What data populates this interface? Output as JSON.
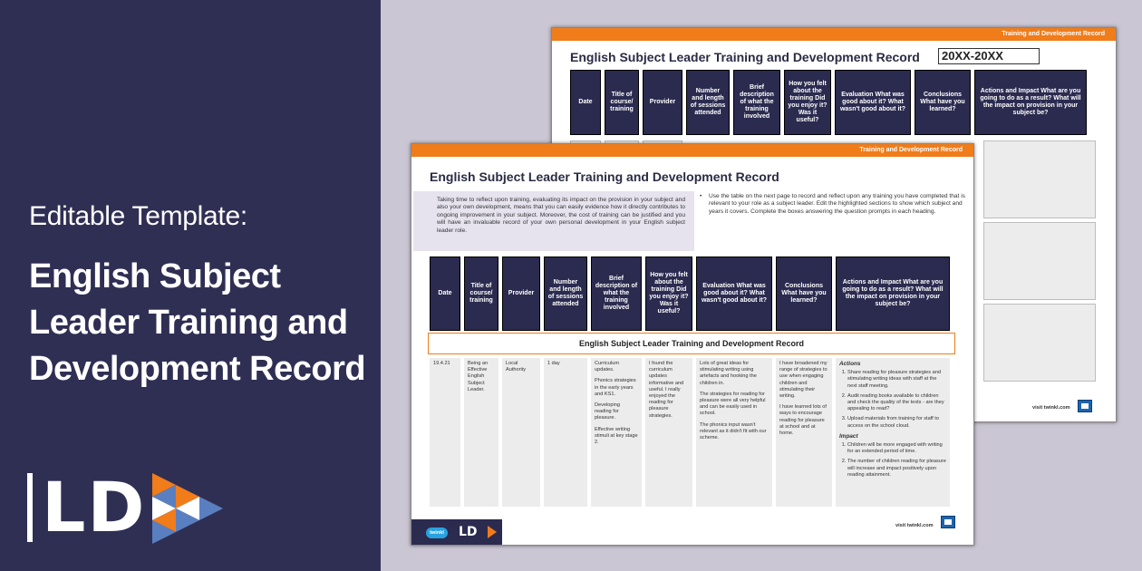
{
  "promo": {
    "edit_label": "Editable Template:",
    "title": "English Subject Leader Training and Development Record",
    "logo_text": "LD",
    "logo_colors": [
      "#f07c1a",
      "#5a7fc1",
      "#ffffff",
      "#2f2f54"
    ]
  },
  "document": {
    "strip_label": "Training and Development Record",
    "title": "English Subject Leader Training and Development Record",
    "year_label": "20XX-20XX",
    "intro_left": "Taking time to reflect upon training, evaluating its impact on the provision in your subject and also your own development, means that you can easily evidence how it directly contributes to ongoing improvement in your subject. Moreover, the cost of training can be justified and you will have an invaluable record of your own personal development in your English subject leader role.",
    "intro_right": "Use the table on the next page to record and reflect upon any training you have completed that is relevant to your role as a subject leader. Edit the highlighted sections to show which subject and years it covers. Complete the boxes answering the question prompts in each heading.",
    "bullet": "•",
    "headers": [
      "Date",
      "Title of course/ training",
      "Provider",
      "Number and length of sessions attended",
      "Brief description of what the training involved",
      "How you felt about the training Did you enjoy it? Was it useful?",
      "Evaluation What was good about it? What wasn't good about it?",
      "Conclusions What have you learned?",
      "Actions and Impact What are you going to do as a result? What will the impact on provision in your subject be?"
    ],
    "sub_banner": "English Subject Leader Training and Development Record",
    "row": {
      "date": "19.4.21",
      "title": "Being an Effective English Subject Leader.",
      "provider": "Local Authority",
      "sessions": "1 day",
      "description": [
        "Curriculum updates.",
        "Phonics strategies in the early years and KS1.",
        "Developing reading for pleasure.",
        "Effective writing stimuli at key stage 2."
      ],
      "feelings": "I found the curriculum updates informative and useful. I really enjoyed the reading for pleasure strategies.",
      "evaluation": [
        "Lots of great ideas for stimulating writing using artefacts and hooking the children in.",
        "The strategies for reading for pleasure were all very helpful and can be easily used in school.",
        "The phonics input wasn't relevant as it didn't fit with our scheme."
      ],
      "conclusions": [
        "I have broadened my range of strategies to use when engaging children and stimulating their writing.",
        "I have learned lots of ways to encourage reading for pleasure at school and at home."
      ],
      "actions_heading": "Actions",
      "actions": [
        "Share reading for pleasure strategies and stimulating writing ideas with staff at the next staff meeting.",
        "Audit reading books available to children and check the quality of the texts - are they appealing to read?",
        "Upload materials from training for staff to access on the school cloud."
      ],
      "impact_heading": "Impact",
      "impact": [
        "Children will be more engaged with writing for an extended period of time.",
        "The number of children reading for pleasure will increase and impact positively upon reading attainment."
      ]
    },
    "footer": {
      "twinkl": "twinkl",
      "ld": "LD",
      "visit": "visit twinkl.com"
    }
  }
}
